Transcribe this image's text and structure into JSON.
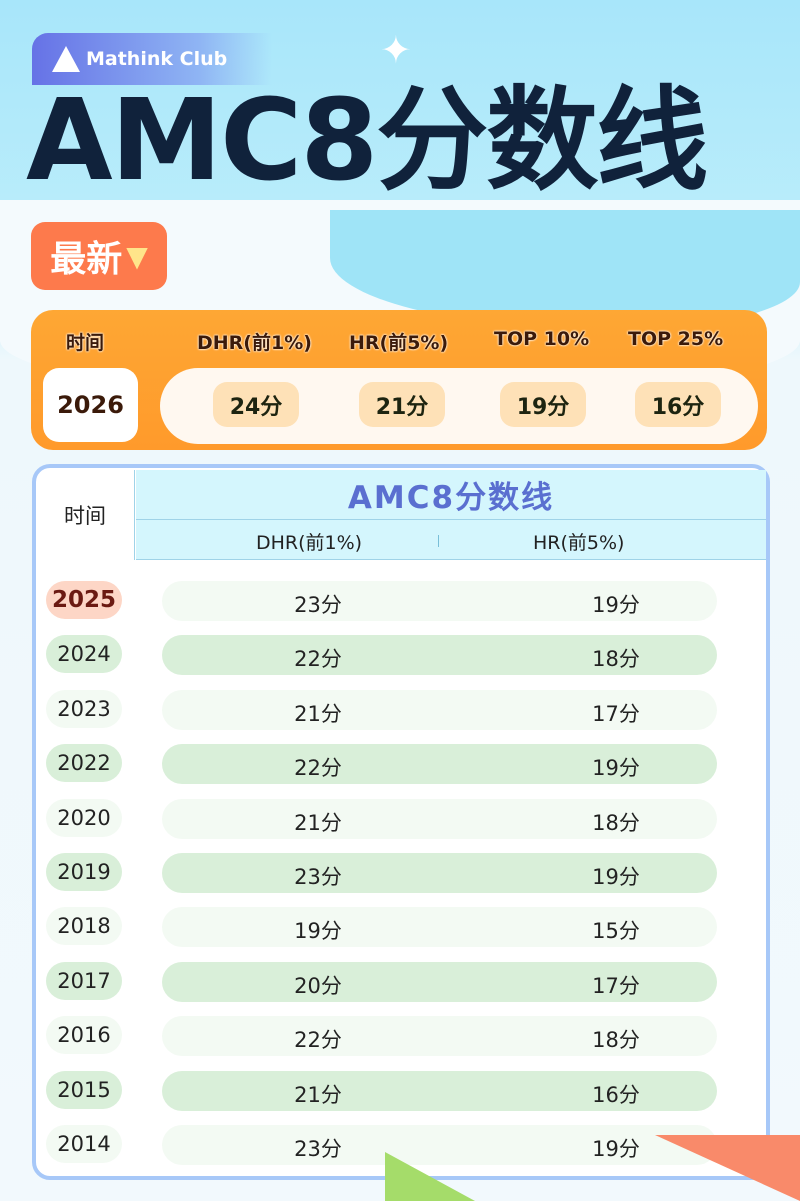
{
  "brand": {
    "name": "Mathink Club"
  },
  "header": {
    "title": "AMC8分数线",
    "badge": "最新",
    "badge_icon": "triangle-down"
  },
  "latest": {
    "time_label": "时间",
    "year": "2026",
    "columns": [
      "DHR(前1%)",
      "HR(前5%)",
      "TOP 10%",
      "TOP 25%"
    ],
    "scores": [
      "24分",
      "21分",
      "19分",
      "16分"
    ]
  },
  "table": {
    "time_label": "时间",
    "title": "AMC8分数线",
    "columns": [
      "DHR(前1%)",
      "HR(前5%)"
    ],
    "rows": [
      {
        "year": "2025",
        "dhr": "23分",
        "hr": "19分"
      },
      {
        "year": "2024",
        "dhr": "22分",
        "hr": "18分"
      },
      {
        "year": "2023",
        "dhr": "21分",
        "hr": "17分"
      },
      {
        "year": "2022",
        "dhr": "22分",
        "hr": "19分"
      },
      {
        "year": "2020",
        "dhr": "21分",
        "hr": "18分"
      },
      {
        "year": "2019",
        "dhr": "23分",
        "hr": "19分"
      },
      {
        "year": "2018",
        "dhr": "19分",
        "hr": "15分"
      },
      {
        "year": "2017",
        "dhr": "20分",
        "hr": "17分"
      },
      {
        "year": "2016",
        "dhr": "22分",
        "hr": "18分"
      },
      {
        "year": "2015",
        "dhr": "21分",
        "hr": "16分"
      },
      {
        "year": "2014",
        "dhr": "23分",
        "hr": "19分"
      }
    ]
  },
  "colors": {
    "orange": "#fea734",
    "highlight_year": "#fdd6c6",
    "row_light": "#f3faf3",
    "row_green": "#d9efd9",
    "title_blue": "#5a6fd0"
  }
}
